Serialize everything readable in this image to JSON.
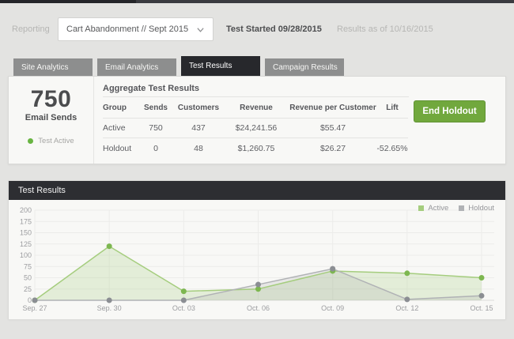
{
  "topbar": {
    "label": "Reporting",
    "dropdown_value": "Cart Abandonment // Sept 2015",
    "test_started": "Test Started 09/28/2015",
    "results_as_of": "Results as of 10/16/2015"
  },
  "tabs": [
    {
      "label": "Site Analytics",
      "active": false
    },
    {
      "label": "Email Analytics",
      "active": false
    },
    {
      "label": "Test Results",
      "active": true
    },
    {
      "label": "Campaign Results",
      "active": false
    }
  ],
  "summary": {
    "big_number": "750",
    "big_label": "Email Sends",
    "status_text": "Test Active",
    "status_color": "#68b441"
  },
  "aggregate": {
    "title": "Aggregate Test Results",
    "columns": [
      "Group",
      "Sends",
      "Customers",
      "Revenue",
      "Revenue per Customer",
      "Lift"
    ],
    "rows": [
      [
        "Active",
        "750",
        "437",
        "$24,241.56",
        "$55.47",
        ""
      ],
      [
        "Holdout",
        "0",
        "48",
        "$1,260.75",
        "$26.27",
        "-52.65%"
      ]
    ],
    "button_label": "End Holdout",
    "button_color": "#71a83d"
  },
  "chart_panel": {
    "title": "Test Results"
  },
  "chart_data": {
    "type": "line",
    "title": "Test Results",
    "x": [
      "Sep. 27",
      "Sep. 30",
      "Oct. 03",
      "Oct. 06",
      "Oct. 09",
      "Oct. 12",
      "Oct. 15"
    ],
    "series": [
      {
        "name": "Active",
        "values": [
          0,
          120,
          20,
          25,
          65,
          60,
          50
        ],
        "line_color": "#a5cd7e",
        "dot_color": "#7db750",
        "fill_color": "#a5cd7e",
        "fill_opacity": 0.25
      },
      {
        "name": "Holdout",
        "values": [
          0,
          0,
          0,
          35,
          70,
          2,
          10
        ],
        "line_color": "#b0b2b5",
        "dot_color": "#8b8e93",
        "fill_color": "#9a9da0",
        "fill_opacity": 0.18
      }
    ],
    "ylim": [
      0,
      200
    ],
    "ytick_step": 25,
    "grid": true,
    "legend_position": "top-right",
    "grid_color": "#ececea",
    "axis_label_color": "#9c9da0"
  }
}
